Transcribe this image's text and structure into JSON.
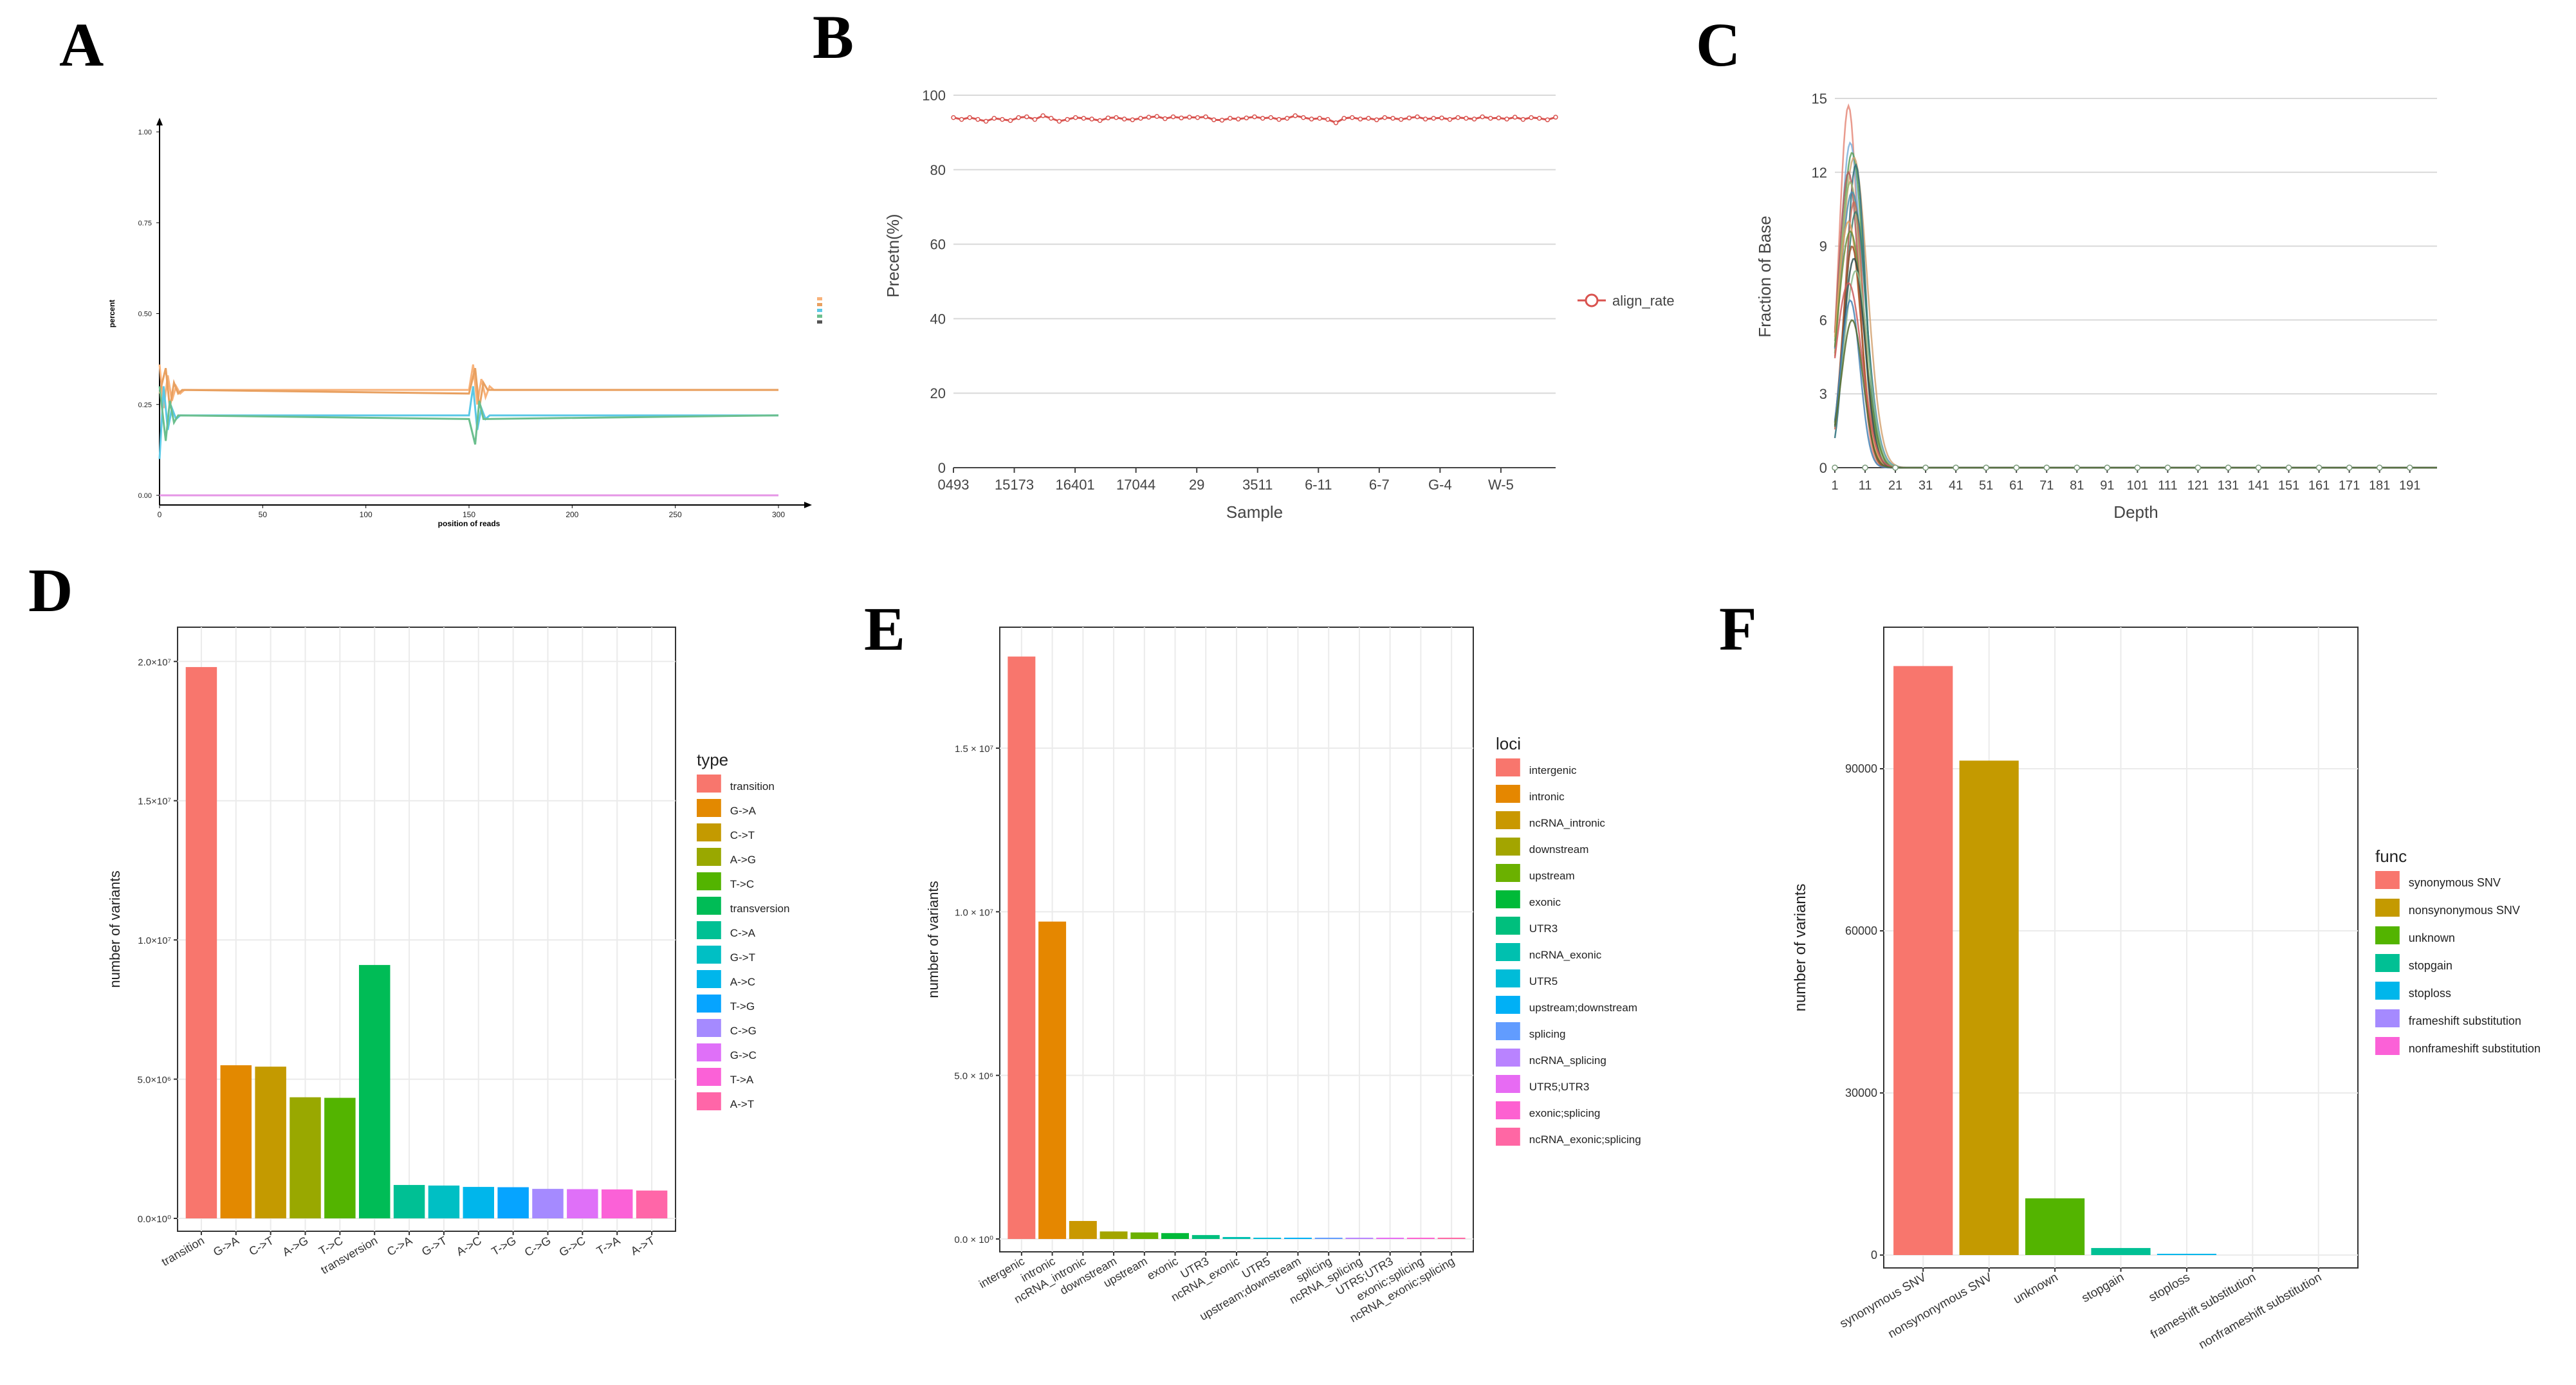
{
  "panel_labels": [
    "A",
    "B",
    "C",
    "D",
    "E",
    "F"
  ],
  "chart_data": [
    {
      "panel": "A",
      "type": "line",
      "xlabel": "position of reads",
      "ylabel": "percent",
      "xlim": [
        0,
        300
      ],
      "ylim": [
        0,
        1
      ],
      "x_ticks": [
        0,
        50,
        100,
        150,
        200,
        250,
        300
      ],
      "y_ticks": [
        "0.00",
        "0.25",
        "0.50",
        "0.75",
        "1.00"
      ],
      "series": [
        {
          "color": "#f8b27a",
          "values_note_x": [
            0,
            2,
            4,
            6,
            8,
            10,
            12,
            150,
            152,
            154,
            156,
            158,
            160,
            162,
            300
          ],
          "values": [
            0.36,
            0.24,
            0.33,
            0.26,
            0.3,
            0.28,
            0.29,
            0.29,
            0.36,
            0.25,
            0.32,
            0.27,
            0.3,
            0.29,
            0.29
          ]
        },
        {
          "color": "#e8a060",
          "values_note_x": [
            0,
            3,
            5,
            7,
            9,
            11,
            150,
            153,
            155,
            157,
            159,
            300
          ],
          "values": [
            0.28,
            0.35,
            0.24,
            0.31,
            0.28,
            0.29,
            0.28,
            0.35,
            0.24,
            0.31,
            0.29,
            0.29
          ]
        },
        {
          "color": "#5bc8e6",
          "values_note_x": [
            0,
            2,
            4,
            6,
            8,
            10,
            150,
            152,
            154,
            156,
            158,
            160,
            300
          ],
          "values": [
            0.1,
            0.3,
            0.18,
            0.24,
            0.21,
            0.22,
            0.22,
            0.3,
            0.18,
            0.24,
            0.21,
            0.22,
            0.22
          ]
        },
        {
          "color": "#6bbf8e",
          "values_note_x": [
            0,
            3,
            5,
            7,
            9,
            150,
            153,
            155,
            157,
            300
          ],
          "values": [
            0.3,
            0.15,
            0.26,
            0.2,
            0.22,
            0.21,
            0.14,
            0.26,
            0.21,
            0.22
          ]
        },
        {
          "color": "#e596e6",
          "values_note_x": [
            0,
            300
          ],
          "values": [
            0.0,
            0.0
          ]
        }
      ],
      "legend": {
        "placement": "right",
        "colors": [
          "#f8b27a",
          "#e8a060",
          "#5bc8e6",
          "#6bbf8e",
          "#555555"
        ]
      }
    },
    {
      "panel": "B",
      "type": "line",
      "xlabel": "Sample",
      "ylabel": "Precetn(%)",
      "ylim": [
        0,
        100
      ],
      "y_ticks": [
        "0",
        "20",
        "40",
        "60",
        "80",
        "100"
      ],
      "x_tick_labels": [
        "0493",
        "15173",
        "16401",
        "17044",
        "29",
        "3511",
        "6-11",
        "6-7",
        "G-4",
        "W-5"
      ],
      "series": [
        {
          "name": "align_rate",
          "color": "#d9534f",
          "values": [
            94,
            93.5,
            94,
            93.5,
            93,
            93.8,
            93.5,
            93.2,
            94,
            94.2,
            93.5,
            94.5,
            93.8,
            93,
            93.5,
            94,
            93.8,
            93.6,
            93.2,
            93.9,
            94,
            93.6,
            93.4,
            93.8,
            94.1,
            94.3,
            93.7,
            94.2,
            93.9,
            94.1,
            94,
            94.2,
            93.4,
            93.3,
            93.8,
            93.6,
            93.9,
            94.2,
            93.8,
            94,
            93.5,
            93.8,
            94.5,
            94,
            93.6,
            93.8,
            93.5,
            92.6,
            93.8,
            94,
            93.6,
            93.8,
            93.4,
            94,
            93.8,
            93.5,
            93.9,
            94.2,
            93.6,
            93.8,
            93.9,
            93.5,
            94,
            93.8,
            93.6,
            94.2,
            93.8,
            93.9,
            93.6,
            94.1,
            93.5,
            94,
            93.8,
            93.4,
            94.1
          ]
        }
      ],
      "legend": {
        "placement": "right"
      }
    },
    {
      "panel": "C",
      "type": "line",
      "xlabel": "Depth",
      "ylabel": "Fraction of Base",
      "xlim": [
        1,
        200
      ],
      "ylim": [
        0,
        15
      ],
      "y_ticks": [
        "0",
        "3",
        "6",
        "9",
        "12",
        "15"
      ],
      "x_ticks": [
        "1",
        "11",
        "21",
        "31",
        "41",
        "51",
        "61",
        "71",
        "81",
        "91",
        "101",
        "111",
        "121",
        "131",
        "141",
        "151",
        "161",
        "171",
        "181",
        "191"
      ],
      "series_note": "many overlapping depth-distribution curves peaking near depth 5-8",
      "peaks": [
        14.7,
        13.2,
        12.8,
        12.6,
        12.3,
        12.0,
        11.6,
        11.2,
        10.8,
        10.4,
        10.0,
        9.6,
        9.0,
        8.5,
        8.0,
        7.5,
        6.8,
        6.0
      ],
      "colors": [
        "#e58a7a",
        "#7fb0d9",
        "#5aa05a",
        "#d4a373",
        "#2a6f7a",
        "#b05a5a",
        "#9ab973",
        "#4e8fb0",
        "#c96e5b",
        "#3b7d6e",
        "#e3a15f",
        "#6f8f3a",
        "#a0522d",
        "#2f4f4f",
        "#8fbc8f",
        "#cd5c5c",
        "#4682b4",
        "#556b2f"
      ]
    },
    {
      "panel": "D",
      "type": "bar",
      "xlabel": "",
      "ylabel": "number of variants",
      "ylim": [
        0,
        21000000
      ],
      "y_ticks": [
        {
          "value": 0,
          "label": "0.0×10⁰"
        },
        {
          "value": 5000000,
          "label": "5.0×10⁶"
        },
        {
          "value": 10000000,
          "label": "1.0×10⁷"
        },
        {
          "value": 15000000,
          "label": "1.5×10⁷"
        },
        {
          "value": 20000000,
          "label": "2.0×10⁷"
        }
      ],
      "categories": [
        "transition",
        "G->A",
        "C->T",
        "A->G",
        "T->C",
        "transversion",
        "C->A",
        "G->T",
        "A->C",
        "T->G",
        "C->G",
        "G->C",
        "T->A",
        "A->T"
      ],
      "values": [
        19800000,
        5500000,
        5450000,
        4350000,
        4330000,
        9100000,
        1200000,
        1180000,
        1130000,
        1120000,
        1060000,
        1050000,
        1040000,
        1000000
      ],
      "colors": [
        "#f8766d",
        "#e38900",
        "#c49a00",
        "#99a800",
        "#53b400",
        "#00bc56",
        "#00c094",
        "#00bfc4",
        "#00b6eb",
        "#06a4ff",
        "#a58aff",
        "#df70f8",
        "#fb61d7",
        "#ff66a8"
      ],
      "legend": {
        "title": "type",
        "placement": "right",
        "entries": [
          "transition",
          "G->A",
          "C->T",
          "A->G",
          "T->C",
          "transversion",
          "C->A",
          "G->T",
          "A->C",
          "T->G",
          "C->G",
          "G->C",
          "T->A",
          "A->T"
        ]
      }
    },
    {
      "panel": "E",
      "type": "bar",
      "xlabel": "",
      "ylabel": "number of variants",
      "ylim": [
        0,
        18500000
      ],
      "y_ticks": [
        {
          "value": 0,
          "label": "0.0 × 10⁰"
        },
        {
          "value": 5000000,
          "label": "5.0 × 10⁶"
        },
        {
          "value": 10000000,
          "label": "1.0 × 10⁷"
        },
        {
          "value": 15000000,
          "label": "1.5 × 10⁷"
        }
      ],
      "categories": [
        "intergenic",
        "intronic",
        "ncRNA_intronic",
        "downstream",
        "upstream",
        "exonic",
        "UTR3",
        "ncRNA_exonic",
        "UTR5",
        "upstream;downstream",
        "splicing",
        "ncRNA_splicing",
        "UTR5;UTR3",
        "exonic;splicing",
        "ncRNA_exonic;splicing"
      ],
      "values": [
        17800000,
        9700000,
        550000,
        230000,
        200000,
        180000,
        120000,
        60000,
        30000,
        12000,
        3000,
        2000,
        500,
        300,
        100
      ],
      "colors": [
        "#f8766d",
        "#e58700",
        "#c99800",
        "#a3a500",
        "#6bb100",
        "#00ba38",
        "#00bf7d",
        "#00c0af",
        "#00bcd8",
        "#00b0f6",
        "#619cff",
        "#b983ff",
        "#e76bf3",
        "#fd61d1",
        "#ff67a4"
      ],
      "legend": {
        "title": "loci",
        "placement": "right",
        "entries": [
          "intergenic",
          "intronic",
          "ncRNA_intronic",
          "downstream",
          "upstream",
          "exonic",
          "UTR3",
          "ncRNA_exonic",
          "UTR5",
          "upstream;downstream",
          "splicing",
          "ncRNA_splicing",
          "UTR5;UTR3",
          "exonic;splicing",
          "ncRNA_exonic;splicing"
        ]
      }
    },
    {
      "panel": "F",
      "type": "bar",
      "xlabel": "",
      "ylabel": "number of variants",
      "ylim": [
        0,
        115000
      ],
      "y_ticks": [
        {
          "value": 0,
          "label": "0"
        },
        {
          "value": 30000,
          "label": "30000"
        },
        {
          "value": 60000,
          "label": "60000"
        },
        {
          "value": 90000,
          "label": "90000"
        }
      ],
      "categories": [
        "synonymous SNV",
        "nonsynonymous SNV",
        "unknown",
        "stopgain",
        "stoploss",
        "frameshift substitution",
        "nonframeshift substitution"
      ],
      "values": [
        109000,
        91500,
        10500,
        1300,
        200,
        0,
        0
      ],
      "colors": [
        "#f8766d",
        "#c49a00",
        "#53b400",
        "#00c094",
        "#00b6eb",
        "#a58aff",
        "#fb61d7"
      ],
      "legend": {
        "title": "func",
        "placement": "right",
        "entries": [
          "synonymous SNV",
          "nonsynonymous SNV",
          "unknown",
          "stopgain",
          "stoploss",
          "frameshift substitution",
          "nonframeshift substitution"
        ]
      }
    }
  ]
}
